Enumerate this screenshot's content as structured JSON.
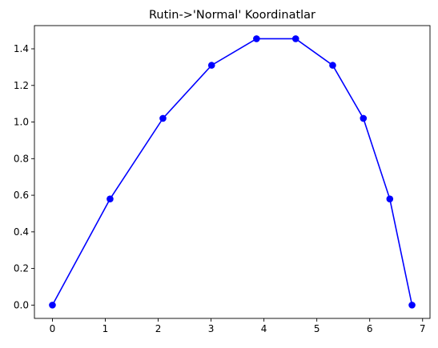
{
  "chart_data": {
    "type": "line",
    "title": "Rutin->'Normal' Koordinatlar",
    "xlabel": "",
    "ylabel": "",
    "xlim": [
      -0.34,
      7.14
    ],
    "ylim": [
      -0.0727,
      1.5268
    ],
    "x_ticks": [
      0,
      1,
      2,
      3,
      4,
      5,
      6,
      7
    ],
    "y_ticks": [
      0.0,
      0.2,
      0.4,
      0.6,
      0.8,
      1.0,
      1.2,
      1.4
    ],
    "x_tick_labels": [
      "0",
      "1",
      "2",
      "3",
      "4",
      "5",
      "6",
      "7"
    ],
    "y_tick_labels": [
      "0.0",
      "0.2",
      "0.4",
      "0.6",
      "0.8",
      "1.0",
      "1.2",
      "1.4"
    ],
    "grid": false,
    "series": [
      {
        "color": "#0000ff",
        "marker": "circle",
        "x": [
          0.0,
          1.09,
          2.09,
          3.01,
          3.86,
          4.6,
          5.3,
          5.88,
          6.38,
          6.8
        ],
        "y": [
          0.0,
          0.58,
          1.02,
          1.31,
          1.455,
          1.455,
          1.31,
          1.02,
          0.58,
          0.0
        ]
      }
    ]
  }
}
